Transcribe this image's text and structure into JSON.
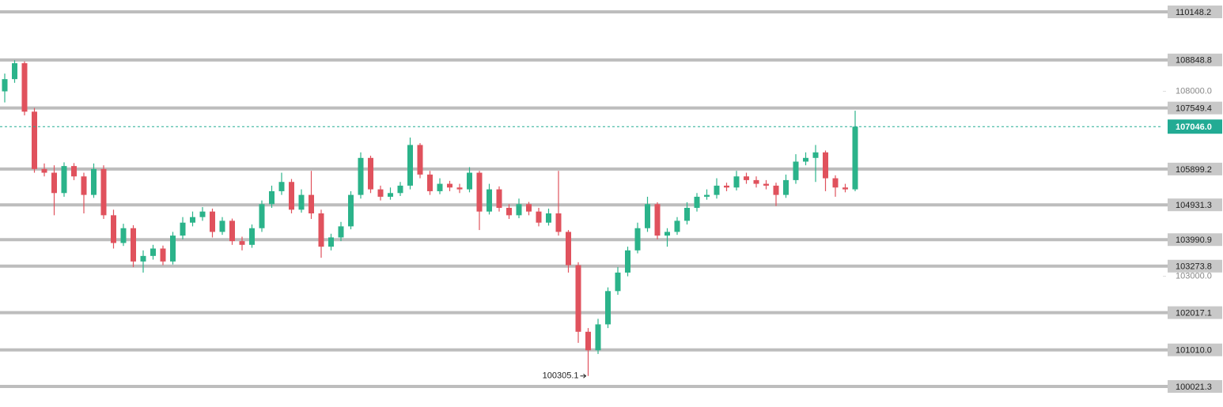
{
  "chart_data": {
    "type": "candlestick",
    "open": [
      108000,
      108330,
      108760,
      107450,
      105900,
      105800,
      105250,
      105980,
      105700,
      105200,
      105900,
      104650,
      103900,
      104300,
      103400,
      103550,
      103750,
      103400,
      104100,
      104450,
      104600,
      104750,
      104200,
      104500,
      103950,
      103850,
      104300,
      104950,
      105300,
      105550,
      104800,
      105200,
      104700,
      103800,
      104050,
      104350,
      105200,
      106200,
      105350,
      105150,
      105250,
      105450,
      106550,
      105750,
      105300,
      105500,
      105400,
      105350,
      105800,
      104750,
      105350,
      104850,
      104650,
      104950,
      104750,
      104450,
      104700,
      104200,
      103300,
      101500,
      101000,
      101700,
      102600,
      103100,
      103700,
      104300,
      104950,
      104100,
      104200,
      104500,
      104850,
      105150,
      105200,
      105450,
      105400,
      105700,
      105600,
      105500,
      105450,
      105200,
      105600,
      106100,
      106200,
      106350,
      105650,
      105400,
      105350
    ],
    "high": [
      108480,
      108840,
      108810,
      107550,
      106050,
      106000,
      106080,
      106060,
      105800,
      106050,
      106000,
      104800,
      104420,
      104380,
      103700,
      103850,
      103830,
      104200,
      104600,
      104750,
      104870,
      104830,
      104600,
      104560,
      104070,
      104400,
      105050,
      105450,
      105800,
      105630,
      105350,
      105850,
      104800,
      104150,
      104470,
      105300,
      106350,
      106260,
      105450,
      105400,
      105550,
      106750,
      106600,
      105850,
      105650,
      105580,
      105500,
      105950,
      105850,
      105500,
      105430,
      104950,
      105100,
      105010,
      104850,
      104830,
      105850,
      104250,
      103380,
      101600,
      101850,
      102700,
      103250,
      103800,
      104450,
      105150,
      105000,
      104300,
      104600,
      105000,
      105250,
      105350,
      105650,
      105530,
      105850,
      105800,
      105700,
      105600,
      105530,
      105750,
      106300,
      106350,
      106550,
      106400,
      105730,
      105500,
      107476
    ],
    "low": [
      107700,
      108230,
      107350,
      105800,
      105700,
      104650,
      105150,
      105600,
      104700,
      105120,
      104550,
      103750,
      103820,
      103250,
      103100,
      103450,
      103300,
      103320,
      104000,
      104350,
      104500,
      104050,
      104120,
      103850,
      103700,
      103770,
      104200,
      104850,
      105200,
      104700,
      104720,
      104550,
      103500,
      103700,
      103950,
      104270,
      105100,
      105250,
      105050,
      105070,
      105170,
      105350,
      105650,
      105200,
      105220,
      105300,
      105250,
      105270,
      104250,
      104670,
      104750,
      104550,
      104570,
      104650,
      104350,
      104370,
      104100,
      103100,
      101200,
      100305.1,
      100900,
      101600,
      102500,
      103000,
      103620,
      104200,
      104000,
      103800,
      104120,
      104400,
      104750,
      105070,
      105100,
      105300,
      105320,
      105500,
      105400,
      105350,
      104900,
      105120,
      105500,
      106000,
      105550,
      105300,
      105150,
      105270,
      105300
    ],
    "close": [
      108330,
      108760,
      107450,
      105900,
      105800,
      105250,
      105980,
      105700,
      105200,
      105900,
      104650,
      103900,
      104300,
      103400,
      103550,
      103750,
      103400,
      104100,
      104450,
      104600,
      104750,
      104200,
      104500,
      103950,
      103850,
      104300,
      104950,
      105300,
      105550,
      104800,
      105200,
      104700,
      103800,
      104050,
      104350,
      105200,
      106200,
      105350,
      105150,
      105250,
      105450,
      106550,
      105750,
      105300,
      105500,
      105400,
      105350,
      105800,
      104750,
      105350,
      104850,
      104650,
      104950,
      104750,
      104450,
      104700,
      104200,
      103300,
      101500,
      101000,
      101700,
      102600,
      103100,
      103700,
      104300,
      104950,
      104100,
      104200,
      104500,
      104850,
      105150,
      105200,
      105450,
      105400,
      105700,
      105600,
      105500,
      105450,
      105200,
      105600,
      106100,
      106200,
      106350,
      105650,
      105400,
      105350,
      107046
    ],
    "up_color": "#2bb38a",
    "down_color": "#e0525d",
    "ylim": [
      99466,
      110469
    ],
    "yticks": [
      {
        "value": 103000,
        "label": "103000.0"
      },
      {
        "value": 108000,
        "label": "108000.0"
      }
    ],
    "levels": [
      110148.2,
      108848.8,
      107549.4,
      105899.2,
      104931.3,
      103990.9,
      103273.8,
      102017.1,
      {
        "value": 101010,
        "label": "101010.0"
      },
      100021.3
    ],
    "level_color": "#bdbdbd",
    "current_price": {
      "value": 107046,
      "label": "107046.0"
    },
    "current_color": "#22ab94",
    "annotation": "100305.1"
  }
}
